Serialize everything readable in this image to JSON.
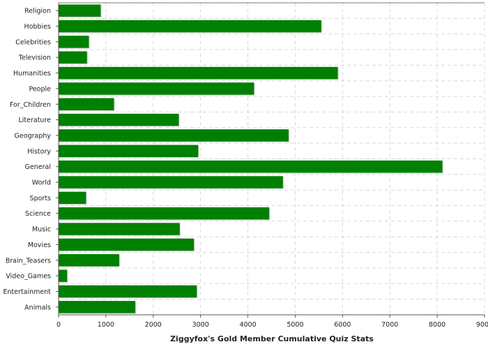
{
  "chart_data": {
    "type": "bar",
    "orientation": "horizontal",
    "title": "Ziggyfox's Gold Member Cumulative Quiz Stats",
    "categories": [
      "Religion",
      "Hobbies",
      "Celebrities",
      "Television",
      "Humanities",
      "People",
      "For_Children",
      "Literature",
      "Geography",
      "History",
      "General",
      "World",
      "Sports",
      "Science",
      "Music",
      "Movies",
      "Brain_Teasers",
      "Video_Games",
      "Entertainment",
      "Animals"
    ],
    "values": [
      890,
      5550,
      640,
      600,
      5900,
      4130,
      1170,
      2540,
      4860,
      2950,
      8110,
      4740,
      580,
      4450,
      2560,
      2860,
      1280,
      180,
      2920,
      1620
    ],
    "xlim": [
      0,
      9000
    ],
    "xticks": [
      "0",
      "1000",
      "2000",
      "3000",
      "4000",
      "5000",
      "6000",
      "7000",
      "8000",
      "9000"
    ],
    "grid": true,
    "colors": {
      "bar": "#008000",
      "bar_shadow": "#c8c8c8",
      "grid": "#d8d8d8",
      "axis": "#555555"
    }
  }
}
